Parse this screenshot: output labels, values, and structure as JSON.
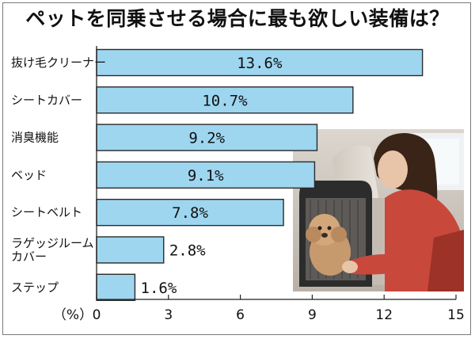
{
  "title": "ペットを同乗させる場合に最も欲しい装備は？",
  "axis_unit": "（%）",
  "photo": {
    "icon": "woman-with-dog-in-car-photo"
  },
  "colors": {
    "bar_fill": "#9ed6f0",
    "bar_stroke": "#2a2a2a",
    "background": "#ffffff"
  },
  "chart_data": {
    "type": "bar",
    "orientation": "horizontal",
    "title": "ペットを同乗させる場合に最も欲しい装備は？",
    "xlabel": "（%）",
    "ylabel": "",
    "xlim": [
      0,
      15
    ],
    "xticks": [
      0,
      3,
      6,
      9,
      12,
      15
    ],
    "grid": false,
    "categories": [
      [
        "抜け毛クリーナー"
      ],
      [
        "シートカバー"
      ],
      [
        "消臭機能"
      ],
      [
        "ベッド"
      ],
      [
        "シートベルト"
      ],
      [
        "ラゲッジルーム",
        "カバー"
      ],
      [
        "ステップ"
      ]
    ],
    "values": [
      13.6,
      10.7,
      9.2,
      9.1,
      7.8,
      2.8,
      1.6
    ],
    "value_labels": [
      "13.6%",
      "10.7%",
      "9.2%",
      "9.1%",
      "7.8%",
      "2.8%",
      "1.6%"
    ]
  }
}
